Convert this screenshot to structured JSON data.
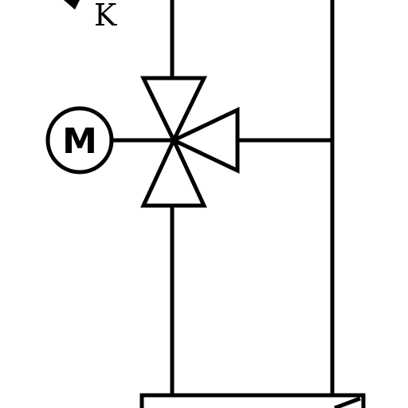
{
  "labels": {
    "pipe_label": "K",
    "motor_symbol": "M"
  },
  "colors": {
    "line": "#000000",
    "background": "#ffffff"
  }
}
